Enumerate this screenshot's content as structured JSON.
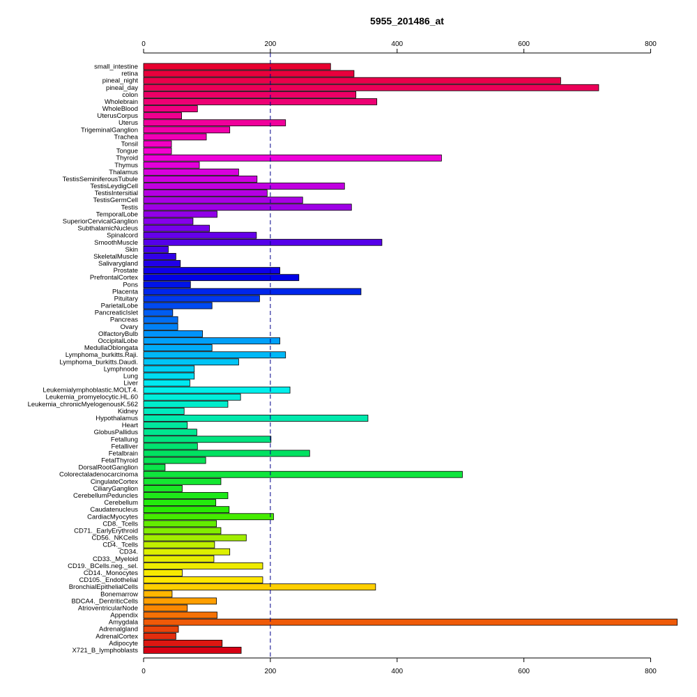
{
  "chart_data": {
    "type": "bar",
    "orientation": "horizontal",
    "title": "5955_201486_at",
    "xlabel": "",
    "ylabel": "",
    "xlim": [
      0,
      840
    ],
    "x_ticks": [
      0,
      200,
      400,
      600,
      800
    ],
    "reference_line": 200,
    "grid": false,
    "categories": [
      "small_intestine",
      "retina",
      "pineal_night",
      "pineal_day",
      "colon",
      "Wholebrain",
      "WholeBlood",
      "UterusCorpus",
      "Uterus",
      "TrigeminalGanglion",
      "Trachea",
      "Tonsil",
      "Tongue",
      "Thyroid",
      "Thymus",
      "Thalamus",
      "TestisSeminiferousTubule",
      "TestisLeydigCell",
      "TestisIntersitial",
      "TestisGermCell",
      "Testis",
      "TemporalLobe",
      "SuperiorCervicalGanglion",
      "SubthalamicNucleus",
      "Spinalcord",
      "SmoothMuscle",
      "Skin",
      "SkeletalMuscle",
      "Salivarygland",
      "Prostate",
      "PrefrontalCortex",
      "Pons",
      "Placenta",
      "Pituitary",
      "ParietalLobe",
      "PancreaticIslet",
      "Pancreas",
      "Ovary",
      "OlfactoryBulb",
      "OccipitalLobe",
      "MedullaOblongata",
      "Lymphoma_burkitts.Raji.",
      "Lymphoma_burkitts.Daudi.",
      "Lymphnode",
      "Lung",
      "Liver",
      "Leukemialymphoblastic.MOLT.4.",
      "Leukemia_promyelocytic.HL.60",
      "Leukemia_chronicMyelogenousK.562",
      "Kidney",
      "Hypothalamus",
      "Heart",
      "GlobusPallidus",
      "Fetallung",
      "Fetalliver",
      "Fetalbrain",
      "FetalThyroid",
      "DorsalRootGanglion",
      "Colorectaladenocarcinoma",
      "CingulateCortex",
      "CiliaryGanglion",
      "CerebellumPeduncles",
      "Cerebellum",
      "Caudatenucleus",
      "CardiacMyocytes",
      "CD8._Tcells",
      "CD71._EarlyErythroid",
      "CD56._NKCells",
      "CD4._Tcells",
      "CD34.",
      "CD33._Myeloid",
      "CD19._BCells.neg._sel.",
      "CD14._Monocytes",
      "CD105._Endothelial",
      "BronchialEpithelialCells",
      "Bonemarrow",
      "BDCA4._DentriticCells",
      "AtrioventricularNode",
      "Appendix",
      "Amygdala",
      "Adrenalgland",
      "AdrenalCortex",
      "Adipocyte",
      "X721_B_lymphoblasts"
    ],
    "values": [
      295,
      332,
      658,
      718,
      335,
      368,
      85,
      60,
      224,
      136,
      99,
      44,
      44,
      470,
      88,
      150,
      179,
      317,
      195,
      251,
      328,
      116,
      78,
      104,
      178,
      376,
      39,
      51,
      58,
      215,
      245,
      74,
      343,
      183,
      108,
      46,
      54,
      54,
      93,
      215,
      108,
      224,
      150,
      80,
      80,
      73,
      231,
      153,
      133,
      64,
      354,
      69,
      84,
      201,
      85,
      262,
      98,
      34,
      503,
      122,
      61,
      133,
      114,
      135,
      205,
      115,
      122,
      162,
      112,
      136,
      111,
      188,
      61,
      188,
      366,
      45,
      115,
      69,
      116,
      842,
      55,
      51,
      124,
      154
    ]
  }
}
